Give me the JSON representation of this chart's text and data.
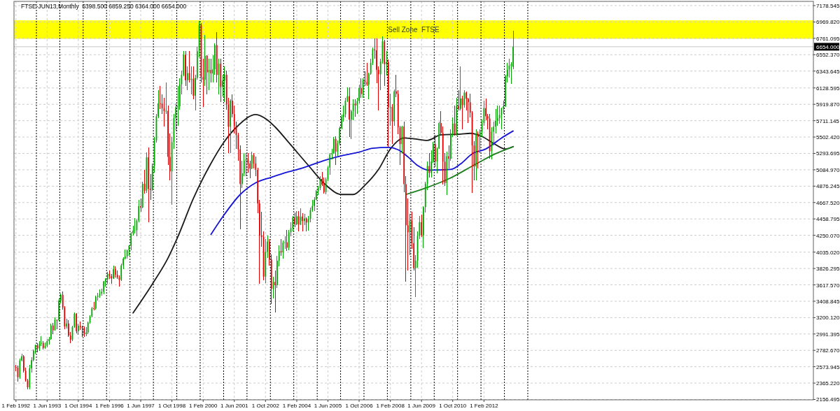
{
  "chart_data": {
    "type": "candlestick",
    "title": "FTSE-JUN13,Monthly  6398.500 6859.250 6364.000 6654.000",
    "x": [
      "1992-02",
      "1992-03",
      "1992-04",
      "1992-05",
      "1992-06",
      "1992-07",
      "1992-08",
      "1992-09",
      "1992-10",
      "1992-11",
      "1992-12",
      "1993-01",
      "1993-02",
      "1993-03",
      "1993-04",
      "1993-05",
      "1993-06",
      "1993-07",
      "1993-08",
      "1993-09",
      "1993-10",
      "1993-11",
      "1993-12",
      "1994-01",
      "1994-02",
      "1994-03",
      "1994-04",
      "1994-05",
      "1994-06",
      "1994-07",
      "1994-08",
      "1994-09",
      "1994-10",
      "1994-11",
      "1994-12",
      "1995-01",
      "1995-02",
      "1995-03",
      "1995-04",
      "1995-05",
      "1995-06",
      "1995-07",
      "1995-08",
      "1995-09",
      "1995-10",
      "1995-11",
      "1995-12",
      "1996-01",
      "1996-02",
      "1996-03",
      "1996-04",
      "1996-05",
      "1996-06",
      "1996-07",
      "1996-08",
      "1996-09",
      "1996-10",
      "1996-11",
      "1996-12",
      "1997-01",
      "1997-02",
      "1997-03",
      "1997-04",
      "1997-05",
      "1997-06",
      "1997-07",
      "1997-08",
      "1997-09",
      "1997-10",
      "1997-11",
      "1997-12",
      "1998-01",
      "1998-02",
      "1998-03",
      "1998-04",
      "1998-05",
      "1998-06",
      "1998-07",
      "1998-08",
      "1998-09",
      "1998-10",
      "1998-11",
      "1998-12",
      "1999-01",
      "1999-02",
      "1999-03",
      "1999-04",
      "1999-05",
      "1999-06",
      "1999-07",
      "1999-08",
      "1999-09",
      "1999-10",
      "1999-11",
      "1999-12",
      "2000-01",
      "2000-02",
      "2000-03",
      "2000-04",
      "2000-05",
      "2000-06",
      "2000-07",
      "2000-08",
      "2000-09",
      "2000-10",
      "2000-11",
      "2000-12",
      "2001-01",
      "2001-02",
      "2001-03",
      "2001-04",
      "2001-05",
      "2001-06",
      "2001-07",
      "2001-08",
      "2001-09",
      "2001-10",
      "2001-11",
      "2001-12",
      "2002-01",
      "2002-02",
      "2002-03",
      "2002-04",
      "2002-05",
      "2002-06",
      "2002-07",
      "2002-08",
      "2002-09",
      "2002-10",
      "2002-11",
      "2002-12",
      "2003-01",
      "2003-02",
      "2003-03",
      "2003-04",
      "2003-05",
      "2003-06",
      "2003-07",
      "2003-08",
      "2003-09",
      "2003-10",
      "2003-11",
      "2003-12",
      "2004-01",
      "2004-02",
      "2004-03",
      "2004-04",
      "2004-05",
      "2004-06",
      "2004-07",
      "2004-08",
      "2004-09",
      "2004-10",
      "2004-11",
      "2004-12",
      "2005-01",
      "2005-02",
      "2005-03",
      "2005-04",
      "2005-05",
      "2005-06",
      "2005-07",
      "2005-08",
      "2005-09",
      "2005-10",
      "2005-11",
      "2005-12",
      "2006-01",
      "2006-02",
      "2006-03",
      "2006-04",
      "2006-05",
      "2006-06",
      "2006-07",
      "2006-08",
      "2006-09",
      "2006-10",
      "2006-11",
      "2006-12",
      "2007-01",
      "2007-02",
      "2007-03",
      "2007-04",
      "2007-05",
      "2007-06",
      "2007-07",
      "2007-08",
      "2007-09",
      "2007-10",
      "2007-11",
      "2007-12",
      "2008-01",
      "2008-02",
      "2008-03",
      "2008-04",
      "2008-05",
      "2008-06",
      "2008-07",
      "2008-08",
      "2008-09",
      "2008-10",
      "2008-11",
      "2008-12",
      "2009-01",
      "2009-02",
      "2009-03",
      "2009-04",
      "2009-05",
      "2009-06",
      "2009-07",
      "2009-08",
      "2009-09",
      "2009-10",
      "2009-11",
      "2009-12",
      "2010-01",
      "2010-02",
      "2010-03",
      "2010-04",
      "2010-05",
      "2010-06",
      "2010-07",
      "2010-08",
      "2010-09",
      "2010-10",
      "2010-11",
      "2010-12",
      "2011-01",
      "2011-02",
      "2011-03",
      "2011-04",
      "2011-05",
      "2011-06",
      "2011-07",
      "2011-08",
      "2011-09",
      "2011-10",
      "2011-11",
      "2011-12",
      "2012-01",
      "2012-02",
      "2012-03",
      "2012-04",
      "2012-05",
      "2012-06",
      "2012-07",
      "2012-08",
      "2012-09",
      "2012-10",
      "2012-11",
      "2012-12",
      "2013-01",
      "2013-02",
      "2013-03",
      "2013-04",
      "2013-05"
    ],
    "ohlc": [
      [
        2571,
        2600,
        2520,
        2562
      ],
      [
        2562,
        2590,
        2380,
        2440
      ],
      [
        2440,
        2680,
        2420,
        2654
      ],
      [
        2654,
        2740,
        2640,
        2708
      ],
      [
        2708,
        2720,
        2500,
        2521
      ],
      [
        2521,
        2560,
        2380,
        2399
      ],
      [
        2399,
        2420,
        2290,
        2312
      ],
      [
        2312,
        2600,
        2290,
        2553
      ],
      [
        2553,
        2700,
        2500,
        2658
      ],
      [
        2658,
        2790,
        2640,
        2778
      ],
      [
        2778,
        2860,
        2740,
        2846
      ],
      [
        2846,
        2870,
        2760,
        2807
      ],
      [
        2807,
        2900,
        2780,
        2868
      ],
      [
        2868,
        2960,
        2840,
        2878
      ],
      [
        2878,
        2900,
        2790,
        2813
      ],
      [
        2813,
        2880,
        2800,
        2840
      ],
      [
        2840,
        2930,
        2820,
        2900
      ],
      [
        2900,
        2950,
        2860,
        2927
      ],
      [
        2927,
        3120,
        2920,
        3100
      ],
      [
        3100,
        3130,
        2990,
        3038
      ],
      [
        3038,
        3200,
        3030,
        3171
      ],
      [
        3171,
        3180,
        3050,
        3166
      ],
      [
        3166,
        3440,
        3150,
        3418
      ],
      [
        3418,
        3510,
        3380,
        3491
      ],
      [
        3491,
        3530,
        3300,
        3328
      ],
      [
        3328,
        3350,
        3050,
        3086
      ],
      [
        3086,
        3190,
        3060,
        3125
      ],
      [
        3125,
        3170,
        2950,
        2970
      ],
      [
        2970,
        3020,
        2870,
        2919
      ],
      [
        2919,
        3100,
        2900,
        3082
      ],
      [
        3082,
        3270,
        3070,
        3251
      ],
      [
        3251,
        3260,
        3000,
        3027
      ],
      [
        3027,
        3120,
        2980,
        3097
      ],
      [
        3097,
        3150,
        3040,
        3081
      ],
      [
        3081,
        3100,
        2950,
        3066
      ],
      [
        3066,
        3090,
        2950,
        2992
      ],
      [
        2992,
        3080,
        2960,
        3010
      ],
      [
        3010,
        3150,
        2990,
        3138
      ],
      [
        3138,
        3230,
        3120,
        3217
      ],
      [
        3217,
        3340,
        3200,
        3320
      ],
      [
        3320,
        3400,
        3290,
        3315
      ],
      [
        3315,
        3480,
        3300,
        3464
      ],
      [
        3464,
        3520,
        3420,
        3478
      ],
      [
        3478,
        3560,
        3450,
        3508
      ],
      [
        3508,
        3570,
        3480,
        3529
      ],
      [
        3529,
        3670,
        3500,
        3664
      ],
      [
        3664,
        3700,
        3600,
        3689
      ],
      [
        3689,
        3780,
        3630,
        3759
      ],
      [
        3759,
        3800,
        3690,
        3727
      ],
      [
        3727,
        3760,
        3630,
        3699
      ],
      [
        3699,
        3860,
        3690,
        3818
      ],
      [
        3818,
        3850,
        3710,
        3747
      ],
      [
        3747,
        3800,
        3690,
        3711
      ],
      [
        3711,
        3740,
        3600,
        3681
      ],
      [
        3681,
        3890,
        3670,
        3867
      ],
      [
        3867,
        3970,
        3820,
        3953
      ],
      [
        3953,
        4070,
        3940,
        3980
      ],
      [
        3980,
        4070,
        3950,
        4058
      ],
      [
        4058,
        4120,
        3990,
        4119
      ],
      [
        4119,
        4290,
        4060,
        4275
      ],
      [
        4275,
        4370,
        4250,
        4308
      ],
      [
        4308,
        4470,
        4270,
        4313
      ],
      [
        4313,
        4450,
        4240,
        4437
      ],
      [
        4437,
        4700,
        4420,
        4621
      ],
      [
        4621,
        4720,
        4550,
        4605
      ],
      [
        4605,
        4930,
        4590,
        4907
      ],
      [
        4907,
        5080,
        4780,
        4818
      ],
      [
        4818,
        5310,
        4790,
        5244
      ],
      [
        5244,
        5370,
        4420,
        4842
      ],
      [
        4842,
        5030,
        4700,
        4831
      ],
      [
        4831,
        5160,
        4820,
        5136
      ],
      [
        5136,
        5500,
        5050,
        5458
      ],
      [
        5458,
        5800,
        5430,
        5767
      ],
      [
        5767,
        6100,
        5740,
        5932
      ],
      [
        5932,
        6150,
        5860,
        5928
      ],
      [
        5928,
        6050,
        5800,
        5870
      ],
      [
        5870,
        6000,
        5640,
        5833
      ],
      [
        5833,
        6200,
        5800,
        5837
      ],
      [
        5837,
        5900,
        5150,
        5250
      ],
      [
        5250,
        5550,
        4950,
        5064
      ],
      [
        5064,
        5500,
        4640,
        5438
      ],
      [
        5438,
        5800,
        5350,
        5744
      ],
      [
        5744,
        5930,
        5580,
        5883
      ],
      [
        5883,
        6150,
        5650,
        5896
      ],
      [
        5896,
        6250,
        5850,
        6175
      ],
      [
        6175,
        6350,
        6050,
        6296
      ],
      [
        6296,
        6600,
        6280,
        6552
      ],
      [
        6552,
        6600,
        6150,
        6226
      ],
      [
        6226,
        6400,
        6100,
        6319
      ],
      [
        6319,
        6600,
        6200,
        6231
      ],
      [
        6231,
        6400,
        6050,
        6246
      ],
      [
        6246,
        6400,
        5980,
        6030
      ],
      [
        6030,
        6300,
        5840,
        6256
      ],
      [
        6256,
        6650,
        6230,
        6597
      ],
      [
        6597,
        6985,
        6520,
        6930
      ],
      [
        6930,
        6960,
        6200,
        6268
      ],
      [
        6268,
        6500,
        5890,
        6233
      ],
      [
        6233,
        6800,
        6150,
        6540
      ],
      [
        6540,
        6550,
        6050,
        6327
      ],
      [
        6327,
        6500,
        6100,
        6359
      ],
      [
        6359,
        6500,
        6200,
        6313
      ],
      [
        6313,
        6550,
        6200,
        6365
      ],
      [
        6365,
        6700,
        6300,
        6673
      ],
      [
        6673,
        6840,
        6200,
        6294
      ],
      [
        6294,
        6500,
        6050,
        6438
      ],
      [
        6438,
        6500,
        5950,
        6142
      ],
      [
        6142,
        6300,
        6020,
        6222
      ],
      [
        6222,
        6400,
        5950,
        6297
      ],
      [
        6297,
        6350,
        5850,
        5918
      ],
      [
        5918,
        6000,
        5300,
        5634
      ],
      [
        5634,
        5980,
        5300,
        5967
      ],
      [
        5967,
        6050,
        5750,
        5796
      ],
      [
        5796,
        5900,
        5550,
        5643
      ],
      [
        5643,
        5700,
        5350,
        5529
      ],
      [
        5529,
        5560,
        5200,
        5345
      ],
      [
        5345,
        5400,
        4330,
        4903
      ],
      [
        4903,
        5200,
        4850,
        5040
      ],
      [
        5040,
        5300,
        5000,
        5204
      ],
      [
        5204,
        5300,
        5000,
        5217
      ],
      [
        5217,
        5300,
        5050,
        5165
      ],
      [
        5165,
        5200,
        4980,
        5101
      ],
      [
        5101,
        5320,
        5090,
        5272
      ],
      [
        5272,
        5300,
        5100,
        5165
      ],
      [
        5165,
        5250,
        5000,
        5086
      ],
      [
        5086,
        5110,
        4530,
        4656
      ],
      [
        4656,
        4700,
        3630,
        4246
      ],
      [
        4246,
        4550,
        4100,
        4227
      ],
      [
        4227,
        4300,
        3680,
        3722
      ],
      [
        3722,
        4200,
        3640,
        4039
      ],
      [
        4039,
        4250,
        3960,
        4170
      ],
      [
        4170,
        4200,
        3860,
        3940
      ],
      [
        3940,
        4010,
        3370,
        3567
      ],
      [
        3567,
        3720,
        3440,
        3656
      ],
      [
        3656,
        3800,
        3270,
        3613
      ],
      [
        3613,
        3990,
        3580,
        3926
      ],
      [
        3926,
        4120,
        3850,
        4048
      ],
      [
        4048,
        4200,
        3990,
        4031
      ],
      [
        4031,
        4180,
        3950,
        4157
      ],
      [
        4157,
        4240,
        4080,
        4161
      ],
      [
        4161,
        4320,
        4050,
        4091
      ],
      [
        4091,
        4320,
        4060,
        4288
      ],
      [
        4288,
        4420,
        4240,
        4342
      ],
      [
        4342,
        4500,
        4300,
        4477
      ],
      [
        4477,
        4540,
        4350,
        4390
      ],
      [
        4390,
        4560,
        4380,
        4492
      ],
      [
        4492,
        4560,
        4300,
        4386
      ],
      [
        4386,
        4590,
        4380,
        4489
      ],
      [
        4489,
        4530,
        4300,
        4431
      ],
      [
        4431,
        4520,
        4380,
        4464
      ],
      [
        4464,
        4480,
        4300,
        4413
      ],
      [
        4413,
        4500,
        4310,
        4459
      ],
      [
        4459,
        4600,
        4420,
        4571
      ],
      [
        4571,
        4700,
        4550,
        4624
      ],
      [
        4624,
        4740,
        4560,
        4703
      ],
      [
        4703,
        4830,
        4700,
        4814
      ],
      [
        4814,
        4880,
        4760,
        4852
      ],
      [
        4852,
        5000,
        4830,
        4969
      ],
      [
        4969,
        5060,
        4880,
        4894
      ],
      [
        4894,
        4990,
        4780,
        4801
      ],
      [
        4801,
        4990,
        4770,
        4964
      ],
      [
        4964,
        5130,
        4940,
        5113
      ],
      [
        5113,
        5300,
        5020,
        5282
      ],
      [
        5282,
        5350,
        5220,
        5297
      ],
      [
        5297,
        5500,
        5290,
        5478
      ],
      [
        5478,
        5510,
        5150,
        5317
      ],
      [
        5317,
        5460,
        5260,
        5423
      ],
      [
        5423,
        5640,
        5400,
        5619
      ],
      [
        5619,
        5790,
        5600,
        5760
      ],
      [
        5760,
        5900,
        5700,
        5792
      ],
      [
        5792,
        6000,
        5750,
        5965
      ],
      [
        5965,
        6140,
        5950,
        6023
      ],
      [
        6023,
        6140,
        5500,
        5724
      ],
      [
        5724,
        5850,
        5480,
        5833
      ],
      [
        5833,
        5980,
        5720,
        5928
      ],
      [
        5928,
        5980,
        5760,
        5906
      ],
      [
        5906,
        6000,
        5800,
        5961
      ],
      [
        5961,
        6170,
        5930,
        6129
      ],
      [
        6129,
        6250,
        6000,
        6049
      ],
      [
        6049,
        6250,
        6000,
        6221
      ],
      [
        6221,
        6340,
        6150,
        6203
      ],
      [
        6203,
        6450,
        6150,
        6172
      ],
      [
        6172,
        6320,
        5980,
        6308
      ],
      [
        6308,
        6500,
        6300,
        6449
      ],
      [
        6449,
        6640,
        6420,
        6621
      ],
      [
        6621,
        6760,
        6500,
        6608
      ],
      [
        6608,
        6760,
        6190,
        6360
      ],
      [
        6360,
        6400,
        5840,
        6303
      ],
      [
        6303,
        6500,
        6100,
        6467
      ],
      [
        6467,
        6790,
        6440,
        6722
      ],
      [
        6722,
        6740,
        6150,
        6432
      ],
      [
        6432,
        6600,
        6290,
        6457
      ],
      [
        6457,
        6490,
        5380,
        5880
      ],
      [
        5880,
        6060,
        5650,
        5884
      ],
      [
        5884,
        5920,
        5410,
        5702
      ],
      [
        5702,
        6110,
        5650,
        6087
      ],
      [
        6087,
        6300,
        6010,
        6053
      ],
      [
        6053,
        6100,
        5540,
        5626
      ],
      [
        5626,
        5650,
        5150,
        5412
      ],
      [
        5412,
        5650,
        5300,
        5637
      ],
      [
        5637,
        5700,
        4800,
        4902
      ],
      [
        4902,
        5000,
        3660,
        4377
      ],
      [
        4377,
        4720,
        3800,
        4288
      ],
      [
        4288,
        4520,
        4000,
        4434
      ],
      [
        4434,
        4550,
        4080,
        4150
      ],
      [
        4150,
        4350,
        3800,
        3830
      ],
      [
        3830,
        4000,
        3460,
        3926
      ],
      [
        3926,
        4300,
        3840,
        4244
      ],
      [
        4244,
        4500,
        4200,
        4418
      ],
      [
        4418,
        4510,
        4230,
        4249
      ],
      [
        4249,
        4620,
        4090,
        4608
      ],
      [
        4608,
        4930,
        4540,
        4909
      ],
      [
        4909,
        5190,
        4830,
        5134
      ],
      [
        5134,
        5300,
        4990,
        5045
      ],
      [
        5045,
        5330,
        4990,
        5191
      ],
      [
        5191,
        5440,
        5170,
        5413
      ],
      [
        5413,
        5530,
        5120,
        5189
      ],
      [
        5189,
        5370,
        5040,
        5355
      ],
      [
        5355,
        5700,
        5350,
        5680
      ],
      [
        5680,
        5830,
        5530,
        5553
      ],
      [
        5553,
        5640,
        4900,
        5188
      ],
      [
        5188,
        5300,
        4880,
        4917
      ],
      [
        4917,
        5320,
        4760,
        5258
      ],
      [
        5258,
        5400,
        5100,
        5225
      ],
      [
        5225,
        5600,
        5200,
        5549
      ],
      [
        5549,
        5750,
        5500,
        5675
      ],
      [
        5675,
        5900,
        5520,
        5528
      ],
      [
        5528,
        6000,
        5520,
        5900
      ],
      [
        5900,
        6100,
        5840,
        5863
      ],
      [
        5863,
        6400,
        5840,
        5994
      ],
      [
        5994,
        6030,
        5600,
        5909
      ],
      [
        5909,
        6100,
        5880,
        6070
      ],
      [
        6070,
        6080,
        5840,
        5990
      ],
      [
        5990,
        6000,
        5680,
        5946
      ],
      [
        5946,
        6060,
        5750,
        5815
      ],
      [
        5815,
        5830,
        4790,
        5395
      ],
      [
        5395,
        5450,
        4950,
        5128
      ],
      [
        5128,
        5600,
        4950,
        5544
      ],
      [
        5544,
        5570,
        5100,
        5505
      ],
      [
        5505,
        5600,
        5300,
        5572
      ],
      [
        5572,
        5730,
        5500,
        5682
      ],
      [
        5682,
        5970,
        5650,
        5872
      ],
      [
        5872,
        5990,
        5720,
        5768
      ],
      [
        5768,
        5800,
        5600,
        5738
      ],
      [
        5738,
        5800,
        5230,
        5321
      ],
      [
        5321,
        5630,
        5220,
        5571
      ],
      [
        5571,
        5700,
        5400,
        5635
      ],
      [
        5635,
        5860,
        5550,
        5711
      ],
      [
        5711,
        5900,
        5650,
        5742
      ],
      [
        5742,
        5900,
        5670,
        5783
      ],
      [
        5783,
        5880,
        5600,
        5867
      ],
      [
        5867,
        5970,
        5800,
        5898
      ],
      [
        5898,
        6300,
        5890,
        6277
      ],
      [
        6277,
        6450,
        6200,
        6361
      ],
      [
        6361,
        6500,
        6260,
        6412
      ],
      [
        6412,
        6460,
        6180,
        6430
      ],
      [
        6398.5,
        6859.25,
        6364,
        6654
      ]
    ],
    "colors": [
      "#e00000",
      "#e00000",
      "#00a800",
      "#00a800",
      "#e00000",
      "#e00000",
      "#e00000",
      "#00a800",
      "#00a800",
      "#00a800",
      "#00a800",
      "#e00000",
      "#00a800",
      "#00a800",
      "#e00000",
      "#00a800",
      "#00a800",
      "#00a800",
      "#00a800",
      "#e00000",
      "#00a800",
      "#e00000",
      "#00a800",
      "#00a800",
      "#e00000",
      "#e00000",
      "#00a800",
      "#e00000",
      "#e00000",
      "#00a800",
      "#00a800",
      "#e00000",
      "#00a800",
      "#e00000",
      "#e00000",
      "#e00000",
      "#00a800",
      "#00a800",
      "#00a800",
      "#00a800",
      "#e00000",
      "#00a800",
      "#00a800",
      "#00a800",
      "#00a800",
      "#00a800",
      "#00a800",
      "#00a800",
      "#e00000",
      "#e00000",
      "#00a800",
      "#e00000",
      "#e00000",
      "#e00000",
      "#00a800",
      "#00a800",
      "#00a800",
      "#00a800",
      "#00a800",
      "#00a800",
      "#00a800",
      "#00a800",
      "#00a800",
      "#00a800",
      "#e00000",
      "#00a800",
      "#e00000",
      "#00a800",
      "#e00000",
      "#e00000",
      "#00a800",
      "#00a800",
      "#00a800",
      "#00a800",
      "#e00000",
      "#e00000",
      "#e00000",
      "#00a800",
      "#e00000",
      "#e00000",
      "#00a800",
      "#00a800",
      "#00a800",
      "#00a800",
      "#00a800",
      "#00a800",
      "#00a800",
      "#e00000",
      "#00a800",
      "#e00000",
      "#00a800",
      "#e00000",
      "#00a800",
      "#00a800",
      "#00a800",
      "#e00000",
      "#e00000",
      "#00a800",
      "#e00000",
      "#00a800",
      "#e00000",
      "#00a800",
      "#00a800",
      "#e00000",
      "#00a800",
      "#e00000",
      "#00a800",
      "#00a800",
      "#e00000",
      "#e00000",
      "#00a800",
      "#e00000",
      "#e00000",
      "#e00000",
      "#e00000",
      "#e00000",
      "#00a800",
      "#00a800",
      "#00a800",
      "#e00000",
      "#e00000",
      "#00a800",
      "#e00000",
      "#e00000",
      "#e00000",
      "#e00000",
      "#e00000",
      "#e00000",
      "#00a800",
      "#00a800",
      "#e00000",
      "#e00000",
      "#00a800",
      "#e00000",
      "#00a800",
      "#00a800",
      "#e00000",
      "#00a800",
      "#00a800",
      "#e00000",
      "#00a800",
      "#00a800",
      "#00a800",
      "#e00000",
      "#00a800",
      "#e00000",
      "#00a800",
      "#e00000",
      "#00a800",
      "#e00000",
      "#00a800",
      "#00a800",
      "#00a800",
      "#00a800",
      "#00a800",
      "#00a800",
      "#00a800",
      "#e00000",
      "#e00000",
      "#00a800",
      "#00a800",
      "#00a800",
      "#00a800",
      "#00a800",
      "#e00000",
      "#00a800",
      "#00a800",
      "#00a800",
      "#00a800",
      "#00a800",
      "#00a800",
      "#e00000",
      "#00a800",
      "#00a800",
      "#e00000",
      "#00a800",
      "#00a800",
      "#e00000",
      "#00a800",
      "#e00000",
      "#e00000",
      "#00a800",
      "#00a800",
      "#00a800",
      "#e00000",
      "#e00000",
      "#e00000",
      "#00a800",
      "#00a800",
      "#e00000",
      "#00a800",
      "#e00000",
      "#00a800",
      "#e00000",
      "#00a800",
      "#e00000",
      "#e00000",
      "#e00000",
      "#00a800",
      "#e00000",
      "#e00000",
      "#e00000",
      "#00a800",
      "#e00000",
      "#e00000",
      "#00a800",
      "#00a800",
      "#00a800",
      "#e00000",
      "#00a800",
      "#00a800",
      "#00a800",
      "#e00000",
      "#00a800",
      "#00a800",
      "#e00000",
      "#00a800",
      "#00a800",
      "#e00000",
      "#e00000",
      "#e00000",
      "#00a800",
      "#e00000",
      "#00a800",
      "#00a800",
      "#e00000",
      "#00a800",
      "#e00000",
      "#00a800",
      "#e00000",
      "#00a800",
      "#e00000",
      "#e00000",
      "#e00000",
      "#e00000",
      "#e00000",
      "#00a800",
      "#e00000",
      "#00a800",
      "#00a800",
      "#00a800",
      "#e00000",
      "#e00000",
      "#e00000",
      "#00a800",
      "#00a800",
      "#00a800",
      "#00a800",
      "#00a800",
      "#00a800",
      "#00a800",
      "#00a800",
      "#00a800",
      "#00a800",
      "#00a800",
      "#00a800"
    ],
    "series": [
      {
        "type": "line",
        "color": "#1a1a1a",
        "x": [
          "1997-02",
          "1997-12",
          "1998-08",
          "1999-01",
          "1999-09",
          "2000-05",
          "2001-01",
          "2001-08",
          "2002-05",
          "2002-11",
          "2003-03",
          "2003-10",
          "2004-08",
          "2005-05",
          "2006-01",
          "2006-07",
          "2007-01",
          "2007-08",
          "2008-02",
          "2008-09",
          "2009-02",
          "2009-09",
          "2010-04",
          "2011-02",
          "2011-07",
          "2012-01",
          "2012-07",
          "2013-01",
          "2013-05"
        ],
        "values": [
          3260,
          3630,
          3960,
          4230,
          4720,
          5120,
          5450,
          5650,
          5790,
          5720,
          5630,
          5430,
          5140,
          4890,
          4770,
          4770,
          4890,
          5090,
          5350,
          5490,
          5480,
          5460,
          5530,
          5540,
          5550,
          5510,
          5420,
          5350,
          5380
        ]
      },
      {
        "type": "line",
        "color": "#1414d8",
        "x": [
          "2000-06",
          "2001-01",
          "2001-09",
          "2002-05",
          "2003-01",
          "2003-10",
          "2004-04",
          "2005-05",
          "2006-02",
          "2006-10",
          "2007-05",
          "2008-01",
          "2008-06",
          "2008-11",
          "2009-04",
          "2009-10",
          "2010-09",
          "2011-02",
          "2011-08",
          "2012-03",
          "2012-11",
          "2013-05"
        ],
        "values": [
          4260,
          4520,
          4770,
          4920,
          4990,
          5060,
          5100,
          5210,
          5270,
          5310,
          5360,
          5370,
          5340,
          5250,
          5140,
          5080,
          5090,
          5160,
          5290,
          5350,
          5490,
          5580
        ]
      },
      {
        "type": "line",
        "color": "#1e7f1e",
        "x": [
          "2008-10",
          "2009-09",
          "2010-08",
          "2011-10",
          "2012-08",
          "2013-05"
        ],
        "values": [
          4770,
          4860,
          4970,
          5160,
          5290,
          5380
        ]
      }
    ],
    "xlim": [
      "1992-01",
      "2026-03"
    ],
    "xticks": [
      {
        "value": "1992-02",
        "label": "1 Feb 1992"
      },
      {
        "value": "1993-06",
        "label": "1 Jun 1993"
      },
      {
        "value": "1994-10",
        "label": "1 Oct 1994"
      },
      {
        "value": "1996-02",
        "label": "1 Feb 1996"
      },
      {
        "value": "1997-06",
        "label": "1 Jun 1997"
      },
      {
        "value": "1998-10",
        "label": "1 Oct 1998"
      },
      {
        "value": "2000-02",
        "label": "1 Feb 2000"
      },
      {
        "value": "2001-06",
        "label": "1 Jun 2001"
      },
      {
        "value": "2002-10",
        "label": "1 Oct 2002"
      },
      {
        "value": "2004-02",
        "label": "1 Feb 2004"
      },
      {
        "value": "2005-06",
        "label": "1 Jun 2005"
      },
      {
        "value": "2006-10",
        "label": "1 Oct 2006"
      },
      {
        "value": "2008-02",
        "label": "1 Feb 2008"
      },
      {
        "value": "2009-06",
        "label": "1 Jun 2009"
      },
      {
        "value": "2010-10",
        "label": "1 Oct 2010"
      },
      {
        "value": "2012-02",
        "label": "1 Feb 2012"
      }
    ],
    "ylim": [
      2152,
      7232
    ],
    "yticks": [
      {
        "value": 2156.495,
        "label": "2156.495"
      },
      {
        "value": 2365.22,
        "label": "2365.220"
      },
      {
        "value": 2573.945,
        "label": "2573.945"
      },
      {
        "value": 2782.67,
        "label": "2782.670"
      },
      {
        "value": 2991.395,
        "label": "2991.395"
      },
      {
        "value": 3200.12,
        "label": "3200.120"
      },
      {
        "value": 3408.845,
        "label": "3408.845"
      },
      {
        "value": 3617.57,
        "label": "3617.570"
      },
      {
        "value": 3826.295,
        "label": "3826.295"
      },
      {
        "value": 4035.02,
        "label": "4035.020"
      },
      {
        "value": 4250.07,
        "label": "4250.070"
      },
      {
        "value": 4458.795,
        "label": "4458.795"
      },
      {
        "value": 4667.52,
        "label": "4667.520"
      },
      {
        "value": 4876.245,
        "label": "4876.245"
      },
      {
        "value": 5084.97,
        "label": "5084.970"
      },
      {
        "value": 5293.695,
        "label": "5293.695"
      },
      {
        "value": 5502.42,
        "label": "5502.420"
      },
      {
        "value": 5711.145,
        "label": "5711.145"
      },
      {
        "value": 5919.87,
        "label": "5919.870"
      },
      {
        "value": 6128.595,
        "label": "6128.595"
      },
      {
        "value": 6343.645,
        "label": "6343.645"
      },
      {
        "value": 6552.37,
        "label": "6552.370"
      },
      {
        "value": 6761.095,
        "label": "6761.095"
      },
      {
        "value": 6969.82,
        "label": "6969.820"
      },
      {
        "value": 7178.545,
        "label": "7178.545"
      }
    ],
    "grid": true,
    "bands": [
      {
        "axis": "y",
        "from": 6755,
        "to": 6990,
        "label": "Sell Zone  FTSE",
        "color": "#ffff00"
      }
    ],
    "ref_lines": [
      {
        "axis": "y",
        "value": 6654,
        "label": "6654.000",
        "color": "#c8c8c8"
      },
      {
        "axis": "x",
        "value": "1992-12-16",
        "color": "#000000",
        "line_style": "dotted"
      },
      {
        "axis": "x",
        "value": "1993-12-16",
        "color": "#000000",
        "line_style": "dotted"
      },
      {
        "axis": "x",
        "value": "1994-12-16",
        "color": "#000000",
        "line_style": "dotted"
      },
      {
        "axis": "x",
        "value": "1995-12-16",
        "color": "#000000",
        "line_style": "dotted"
      },
      {
        "axis": "x",
        "value": "1996-12-16",
        "color": "#000000",
        "line_style": "dotted"
      },
      {
        "axis": "x",
        "value": "1997-12-16",
        "color": "#000000",
        "line_style": "dotted"
      },
      {
        "axis": "x",
        "value": "1998-12-16",
        "color": "#000000",
        "line_style": "dotted"
      },
      {
        "axis": "x",
        "value": "1999-12-16",
        "color": "#000000",
        "line_style": "dotted"
      },
      {
        "axis": "x",
        "value": "2000-12-16",
        "color": "#000000",
        "line_style": "dotted"
      },
      {
        "axis": "x",
        "value": "2001-12-16",
        "color": "#000000",
        "line_style": "dotted"
      },
      {
        "axis": "x",
        "value": "2002-12-16",
        "color": "#000000",
        "line_style": "dotted"
      },
      {
        "axis": "x",
        "value": "2003-12-16",
        "color": "#000000",
        "line_style": "dotted"
      },
      {
        "axis": "x",
        "value": "2004-12-16",
        "color": "#000000",
        "line_style": "dotted"
      },
      {
        "axis": "x",
        "value": "2005-12-16",
        "color": "#000000",
        "line_style": "dotted"
      },
      {
        "axis": "x",
        "value": "2006-12-16",
        "color": "#000000",
        "line_style": "dotted"
      },
      {
        "axis": "x",
        "value": "2007-12-16",
        "color": "#000000",
        "line_style": "dotted"
      },
      {
        "axis": "x",
        "value": "2008-12-16",
        "color": "#000000",
        "line_style": "dotted"
      },
      {
        "axis": "x",
        "value": "2009-12-16",
        "color": "#000000",
        "line_style": "dotted"
      },
      {
        "axis": "x",
        "value": "2010-12-16",
        "color": "#000000",
        "line_style": "dotted"
      },
      {
        "axis": "x",
        "value": "2011-12-16",
        "color": "#000000",
        "line_style": "dotted"
      },
      {
        "axis": "x",
        "value": "2012-12-16",
        "color": "#000000",
        "line_style": "dotted"
      },
      {
        "axis": "x",
        "value": "2013-12-16",
        "color": "#000000",
        "line_style": "dotted"
      }
    ]
  }
}
